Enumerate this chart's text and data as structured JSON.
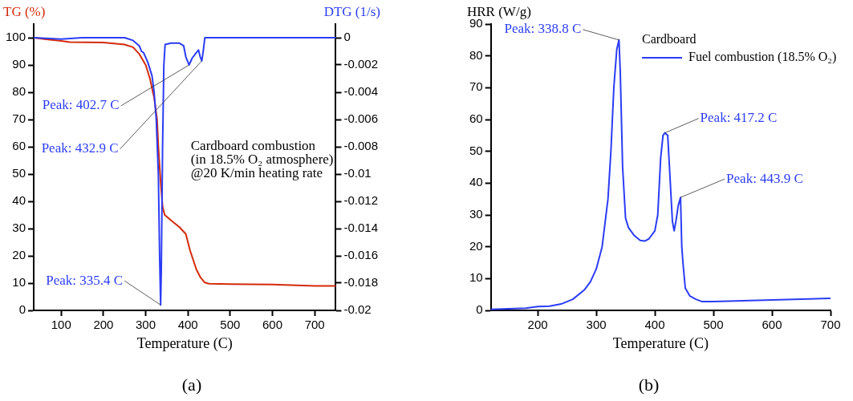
{
  "chart_data": [
    {
      "type": "line",
      "title": "(a)",
      "xlabel": "Temperature (C)",
      "ylabel": "TG (%)",
      "y2label": "DTG (1/s)",
      "xlim": [
        35,
        750
      ],
      "xticks": [
        100,
        200,
        300,
        400,
        500,
        600,
        700
      ],
      "ylim": [
        0,
        105
      ],
      "yticks": [
        0,
        10,
        20,
        30,
        40,
        50,
        60,
        70,
        80,
        90,
        100
      ],
      "y2lim": [
        -0.02,
        0.001
      ],
      "y2ticks": [
        0,
        -0.002,
        -0.004,
        -0.006,
        -0.008,
        -0.01,
        -0.012,
        -0.014,
        -0.016,
        -0.018,
        -0.02
      ],
      "grid": false,
      "legend": false,
      "marker": "none",
      "line_style": "solid",
      "series": [
        {
          "color": "#d42a0a",
          "x": [
            35,
            60,
            100,
            120,
            200,
            250,
            270,
            285,
            300,
            310,
            320,
            327,
            330,
            335,
            340,
            345,
            360,
            380,
            395,
            405,
            420,
            430,
            440,
            450,
            500,
            600,
            700,
            750
          ],
          "values": [
            100,
            99.5,
            98.8,
            98.4,
            98.2,
            97.5,
            96.5,
            94,
            90,
            85,
            78,
            70,
            60,
            48,
            38,
            35,
            33,
            30.5,
            28,
            22,
            15,
            12,
            10.2,
            9.8,
            9.6,
            9.5,
            9,
            9
          ]
        },
        {
          "color": "#2b3cf5",
          "axis": "y2",
          "x": [
            35,
            100,
            150,
            250,
            270,
            285,
            290,
            295,
            305,
            315,
            320,
            325,
            330,
            333,
            335.4,
            337,
            340,
            343,
            346,
            360,
            380,
            390,
            395,
            402.7,
            410,
            420,
            425,
            429,
            432.9,
            437,
            440,
            500,
            750
          ],
          "values": [
            0,
            -0.0001,
            0,
            0,
            -0.0002,
            -0.0006,
            -0.001,
            -0.0011,
            -0.0018,
            -0.0028,
            -0.004,
            -0.006,
            -0.01,
            -0.016,
            -0.0196,
            -0.017,
            -0.008,
            -0.002,
            -0.0005,
            -0.0004,
            -0.0004,
            -0.0006,
            -0.0014,
            -0.002,
            -0.0015,
            -0.0011,
            -0.0009,
            -0.0014,
            -0.0017,
            -0.0008,
            0,
            0,
            0
          ]
        }
      ],
      "annotations": [
        {
          "text": "Peak: 402.7 C",
          "x": 402.7,
          "y": 90
        },
        {
          "text": "Peak: 432.9 C",
          "x": 432.9,
          "y": 91.5
        },
        {
          "text": "Peak: 335.4 C",
          "x": 335.4,
          "y": 2
        },
        "Cardboard combustion",
        "(in 18.5% O₂ atmosphere)",
        "@20 K/min heating rate"
      ]
    },
    {
      "type": "line",
      "title": "(b)",
      "xlabel": "Temperature (C)",
      "ylabel": "HRR (W/g)",
      "legend_title": "Cardboard",
      "xlim": [
        120,
        700
      ],
      "xticks": [
        200,
        300,
        400,
        500,
        600,
        700
      ],
      "ylim": [
        0,
        90
      ],
      "yticks": [
        0,
        10,
        20,
        30,
        40,
        50,
        60,
        70,
        80,
        90
      ],
      "grid": false,
      "legend": "top right",
      "marker": "none",
      "line_style": "solid",
      "series": [
        {
          "name": "Fuel combustion (18.5% O₂)",
          "color": "#2b3cf5",
          "x": [
            120,
            150,
            180,
            200,
            220,
            240,
            260,
            280,
            290,
            300,
            310,
            320,
            325,
            330,
            335,
            338.8,
            341,
            345,
            350,
            355,
            365,
            375,
            383,
            390,
            400,
            405,
            410,
            414,
            417.2,
            422,
            425,
            430,
            433,
            436,
            440,
            443.9,
            446,
            448,
            452,
            460,
            470,
            480,
            500,
            550,
            600,
            650,
            700
          ],
          "values": [
            0.3,
            0.5,
            0.7,
            1.2,
            1.3,
            2,
            3.5,
            6.5,
            9,
            13,
            20,
            35,
            50,
            70,
            82,
            85,
            75,
            45,
            29,
            26,
            23.5,
            22,
            21.8,
            22.5,
            25,
            30,
            48,
            55,
            55.8,
            55,
            45,
            28,
            25,
            28,
            33,
            35.5,
            20,
            15,
            7,
            4.5,
            3.5,
            2.8,
            2.8,
            3,
            3.3,
            3.5,
            3.8
          ]
        }
      ],
      "annotations": [
        {
          "text": "Peak: 338.8 C",
          "x": 338.8,
          "y": 85
        },
        {
          "text": "Peak: 417.2 C",
          "x": 417.2,
          "y": 55.8
        },
        {
          "text": "Peak: 443.9 C",
          "x": 443.9,
          "y": 35.5
        }
      ]
    }
  ]
}
